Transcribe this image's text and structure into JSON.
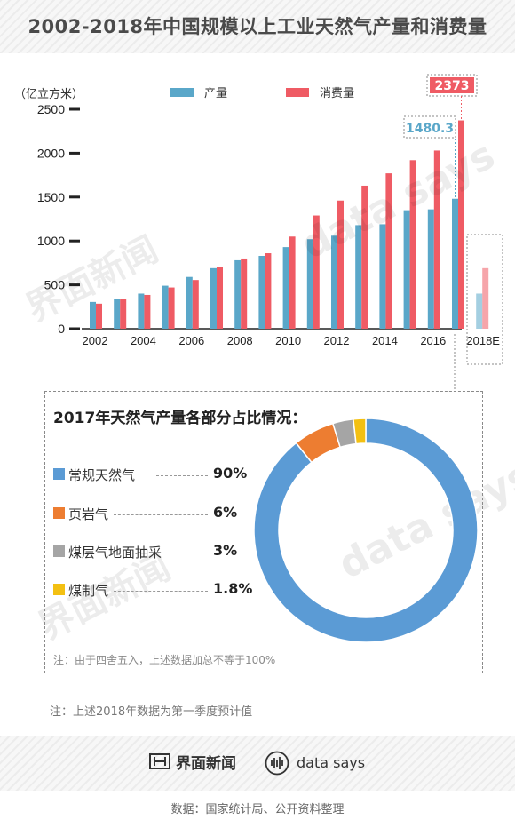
{
  "title": "2002-2018年中国规模以上工业天然气产量和消费量",
  "chart_data": [
    {
      "type": "bar",
      "ylabel": "（亿立方米）",
      "ylim": [
        0,
        2500
      ],
      "yticks": [
        "0",
        "500",
        "1000",
        "1500",
        "2000",
        "2500"
      ],
      "xtick_labels": [
        "2002",
        "2004",
        "2006",
        "2008",
        "2010",
        "2012",
        "2014",
        "2016",
        "2018E"
      ],
      "categories": [
        "2002",
        "2003",
        "2004",
        "2005",
        "2006",
        "2007",
        "2008",
        "2009",
        "2010",
        "2011",
        "2012",
        "2013",
        "2014",
        "2015",
        "2016",
        "2017",
        "2018E"
      ],
      "series": [
        {
          "name": "产量",
          "color": "#5aa7c9",
          "values": [
            305,
            340,
            400,
            490,
            590,
            690,
            780,
            830,
            930,
            1020,
            1060,
            1180,
            1190,
            1350,
            1360,
            1480.3,
            400
          ]
        },
        {
          "name": "消费量",
          "color": "#ef5b64",
          "values": [
            285,
            335,
            385,
            470,
            555,
            700,
            800,
            860,
            1050,
            1290,
            1460,
            1630,
            1770,
            1920,
            2030,
            2373,
            690
          ]
        }
      ],
      "callouts": {
        "production_2017": "1480.3",
        "consumption_2017": "2373"
      }
    },
    {
      "type": "pie",
      "title": "2017年天然气产量各部分占比情况：",
      "slices": [
        {
          "label": "常规天然气",
          "value": 90,
          "value_label": "90%",
          "color": "#5b9bd5"
        },
        {
          "label": "页岩气",
          "value": 6,
          "value_label": "6%",
          "color": "#ed7d31"
        },
        {
          "label": "煤层气地面抽采",
          "value": 3,
          "value_label": "3%",
          "color": "#a5a5a5"
        },
        {
          "label": "煤制气",
          "value": 1.8,
          "value_label": "1.8%",
          "color": "#f3c012"
        }
      ],
      "note": "注：由于四舍五入，上述数据加总不等于100%"
    }
  ],
  "bottom_note": "注：上述2018年数据为第一季度预计值",
  "brand": {
    "jiemian": "界面新闻",
    "datasays": "data says"
  },
  "watermarks": [
    "界面新闻",
    "data says"
  ],
  "source": "数据：国家统计局、公开资料整理"
}
